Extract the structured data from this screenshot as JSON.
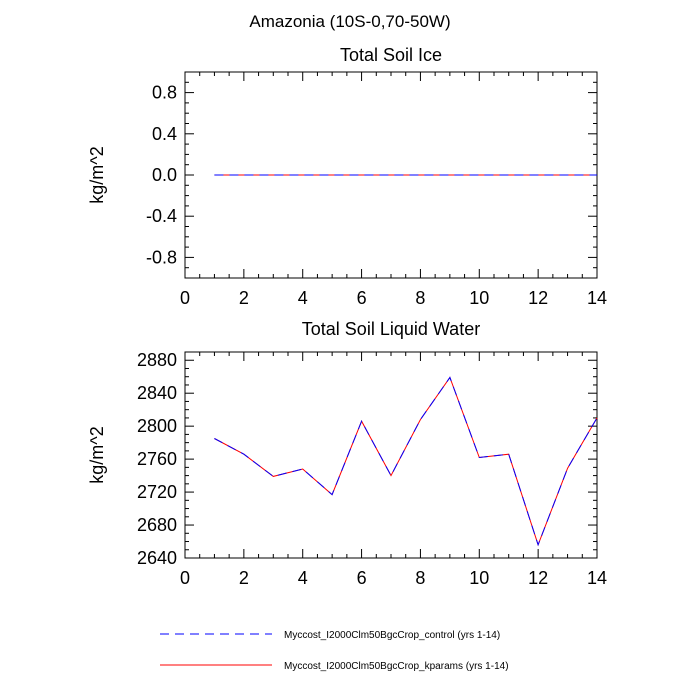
{
  "figure_title": "Amazonia (10S-0,70-50W)",
  "legend": [
    {
      "label": "Myccost_I2000Clm50BgcCrop_control (yrs 1-14)",
      "color": "#0000ff",
      "dash": "dashed"
    },
    {
      "label": "Myccost_I2000Clm50BgcCrop_kparams (yrs 1-14)",
      "color": "#ff0000",
      "dash": "solid"
    }
  ],
  "chart_data": [
    {
      "type": "line",
      "title": "Total Soil Ice",
      "xlabel": "",
      "ylabel": "kg/m^2",
      "xlim": [
        0,
        14
      ],
      "ylim": [
        -1.0,
        1.0
      ],
      "xticks": [
        0,
        2,
        4,
        6,
        8,
        10,
        12,
        14
      ],
      "yticks": [
        -0.8,
        -0.4,
        0.0,
        0.4,
        0.8
      ],
      "ytick_labels": [
        "-0.8",
        "-0.4",
        "0.0",
        "0.4",
        "0.8"
      ],
      "x": [
        1,
        2,
        3,
        4,
        5,
        6,
        7,
        8,
        9,
        10,
        11,
        12,
        13,
        14
      ],
      "series": [
        {
          "values": [
            0,
            0,
            0,
            0,
            0,
            0,
            0,
            0,
            0,
            0,
            0,
            0,
            0,
            0
          ],
          "color": "#0000ff",
          "dash": "dashed"
        },
        {
          "values": [
            0,
            0,
            0,
            0,
            0,
            0,
            0,
            0,
            0,
            0,
            0,
            0,
            0,
            0
          ],
          "color": "#ff0000",
          "dash": "solid"
        }
      ],
      "grid": false
    },
    {
      "type": "line",
      "title": "Total Soil Liquid Water",
      "xlabel": "",
      "ylabel": "kg/m^2",
      "xlim": [
        0,
        14
      ],
      "ylim": [
        2640,
        2890
      ],
      "xticks": [
        0,
        2,
        4,
        6,
        8,
        10,
        12,
        14
      ],
      "yticks": [
        2640,
        2680,
        2720,
        2760,
        2800,
        2840,
        2880
      ],
      "ytick_labels": [
        "2640",
        "2680",
        "2720",
        "2760",
        "2800",
        "2840",
        "2880"
      ],
      "x": [
        1,
        2,
        3,
        4,
        5,
        6,
        7,
        8,
        9,
        10,
        11,
        12,
        13,
        14
      ],
      "series": [
        {
          "values": [
            2785,
            2766,
            2739,
            2748,
            2717,
            2806,
            2740,
            2808,
            2859,
            2762,
            2766,
            2656,
            2749,
            2810
          ],
          "color": "#0000ff",
          "dash": "dashed"
        },
        {
          "values": [
            2785,
            2766,
            2739,
            2748,
            2717,
            2806,
            2740,
            2808,
            2859,
            2762,
            2766,
            2656,
            2749,
            2810
          ],
          "color": "#ff0000",
          "dash": "solid"
        }
      ],
      "grid": false
    }
  ]
}
